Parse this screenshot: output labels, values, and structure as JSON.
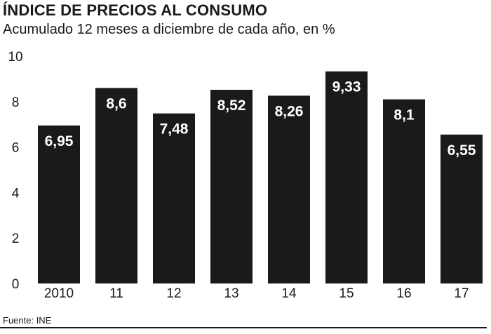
{
  "header": {
    "title": "ÍNDICE DE PRECIOS AL CONSUMO",
    "subtitle": "Acumulado 12 meses a diciembre de cada año, en %"
  },
  "footer": {
    "source": "Fuente: INE"
  },
  "colors": {
    "bar": "#1a1a1a",
    "label_text": "#ffffff",
    "axis_text": "#1a1a1a"
  },
  "chart_data": {
    "type": "bar",
    "categories": [
      "2010",
      "11",
      "12",
      "13",
      "14",
      "15",
      "16",
      "17"
    ],
    "values": [
      6.95,
      8.6,
      7.48,
      8.52,
      8.26,
      9.33,
      8.1,
      6.55
    ],
    "data_labels": [
      "6,95",
      "8,6",
      "7,48",
      "8,52",
      "8,26",
      "9,33",
      "8,1",
      "6,55"
    ],
    "title": "ÍNDICE DE PRECIOS AL CONSUMO",
    "subtitle": "Acumulado 12 meses a diciembre de cada año, en %",
    "xlabel": "",
    "ylabel": "",
    "ylim": [
      0,
      10
    ],
    "yticks": [
      0,
      2,
      4,
      6,
      8,
      10
    ],
    "grid": false,
    "legend": false
  }
}
